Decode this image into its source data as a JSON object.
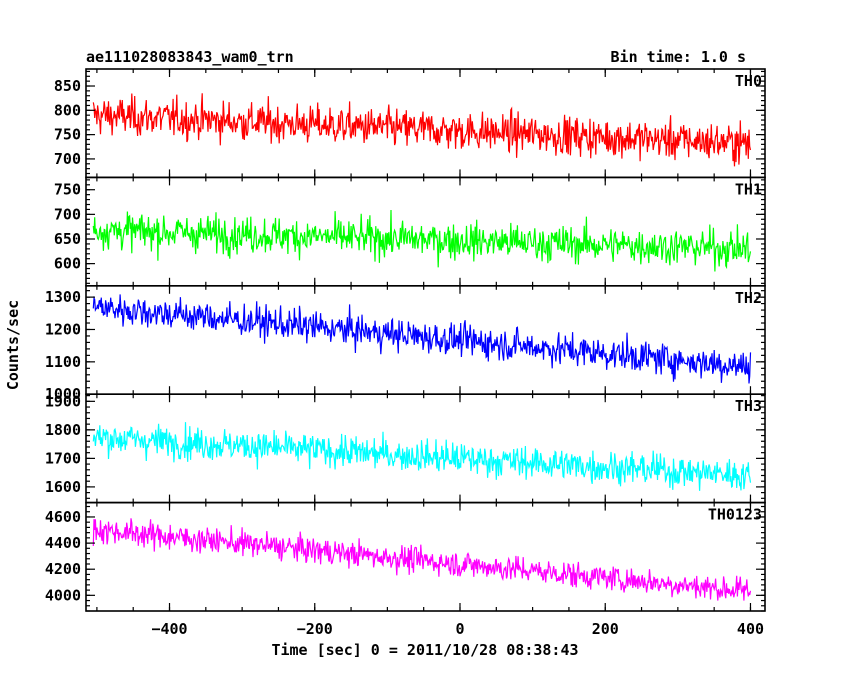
{
  "chart_data": {
    "type": "line",
    "title": "ae111028083843_wam0_trn",
    "bin_time_label": "Bin time: 1.0 s",
    "xlabel": "Time [sec] 0 = 2011/10/28 08:38:43",
    "ylabel": "Counts/sec",
    "xlim": [
      -515,
      420
    ],
    "x_ticks": [
      -400,
      -200,
      0,
      200,
      400
    ],
    "x_range": [
      -505,
      400
    ],
    "grid": false,
    "panels": [
      {
        "name": "TH0",
        "color": "#ff0000",
        "ylim": [
          662,
          885
        ],
        "ticks": [
          700,
          750,
          800,
          850
        ],
        "trend": {
          "start": 790,
          "end": 732
        },
        "noise": 28
      },
      {
        "name": "TH1",
        "color": "#00ff00",
        "ylim": [
          555,
          775
        ],
        "ticks": [
          600,
          650,
          700,
          750
        ],
        "trend": {
          "start": 668,
          "end": 630
        },
        "noise": 26
      },
      {
        "name": "TH2",
        "color": "#0000ff",
        "ylim": [
          1000,
          1335
        ],
        "ticks": [
          1000,
          1100,
          1200,
          1300
        ],
        "trend": {
          "start": 1270,
          "end": 1085
        },
        "noise": 35
      },
      {
        "name": "TH3",
        "color": "#00ffff",
        "ylim": [
          1545,
          1925
        ],
        "ticks": [
          1600,
          1700,
          1800,
          1900
        ],
        "trend": {
          "start": 1775,
          "end": 1640
        },
        "noise": 40
      },
      {
        "name": "TH0123",
        "color": "#ff00ff",
        "ylim": [
          3880,
          4710
        ],
        "ticks": [
          4000,
          4200,
          4400,
          4600
        ],
        "trend": {
          "start": 4505,
          "end": 4030
        },
        "noise": 70
      }
    ]
  }
}
